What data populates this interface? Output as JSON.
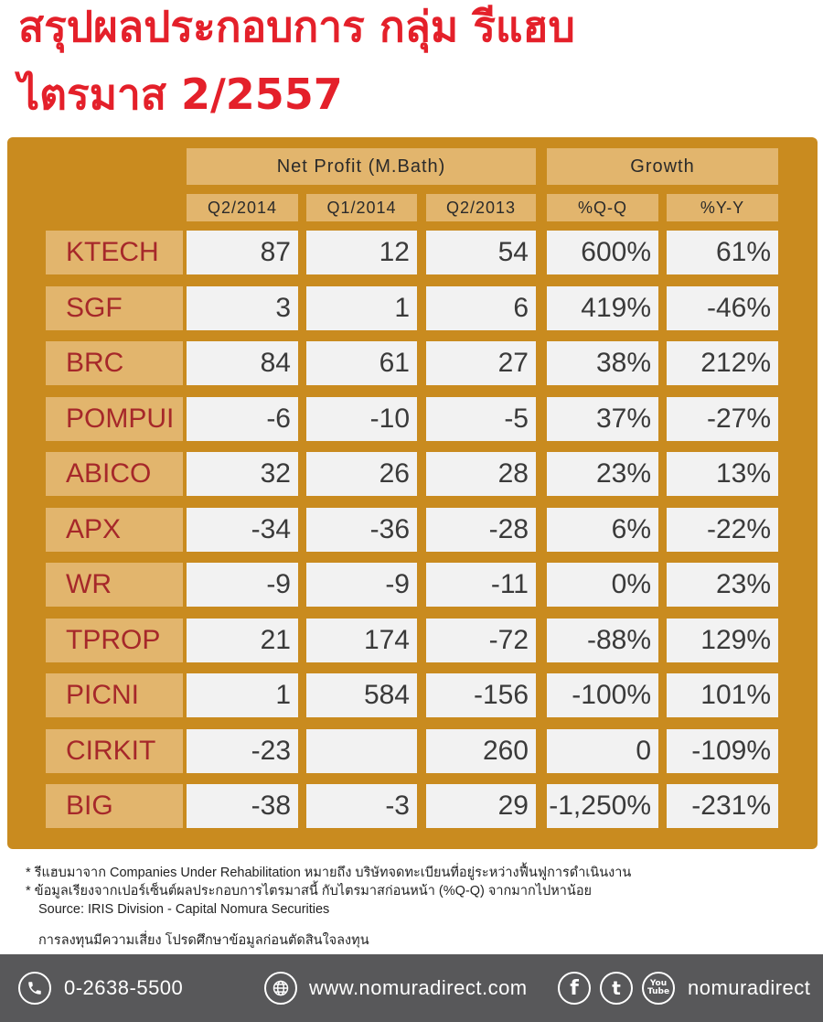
{
  "title": {
    "line1": "สรุปผลประกอบการ กลุ่ม รีแฮบ",
    "line2": "ไตรมาส 2/2557"
  },
  "table": {
    "group_headers": {
      "net_profit": "Net Profit (M.Bath)",
      "growth": "Growth"
    },
    "columns": [
      "Q2/2014",
      "Q1/2014",
      "Q2/2013",
      "%Q-Q",
      "%Y-Y"
    ],
    "rows": [
      {
        "name": "KTECH",
        "values": [
          "87",
          "12",
          "54",
          "600%",
          "61%"
        ]
      },
      {
        "name": "SGF",
        "values": [
          "3",
          "1",
          "6",
          "419%",
          "-46%"
        ]
      },
      {
        "name": "BRC",
        "values": [
          "84",
          "61",
          "27",
          "38%",
          "212%"
        ]
      },
      {
        "name": "POMPUI",
        "values": [
          "-6",
          "-10",
          "-5",
          "37%",
          "-27%"
        ]
      },
      {
        "name": "ABICO",
        "values": [
          "32",
          "26",
          "28",
          "23%",
          "13%"
        ]
      },
      {
        "name": "APX",
        "values": [
          "-34",
          "-36",
          "-28",
          "6%",
          "-22%"
        ]
      },
      {
        "name": "WR",
        "values": [
          "-9",
          "-9",
          "-11",
          "0%",
          "23%"
        ]
      },
      {
        "name": "TPROP",
        "values": [
          "21",
          "174",
          "-72",
          "-88%",
          "129%"
        ]
      },
      {
        "name": "PICNI",
        "values": [
          "1",
          "584",
          "-156",
          "-100%",
          "101%"
        ]
      },
      {
        "name": "CIRKIT",
        "values": [
          "-23",
          "",
          "260",
          "0",
          "-109%"
        ]
      },
      {
        "name": "BIG",
        "values": [
          "-38",
          "-3",
          "29",
          "-1,250%",
          "-231%"
        ]
      }
    ]
  },
  "notes": {
    "line1": "* รีแฮบมาจาก Companies Under Rehabilitation หมายถึง บริษัทจดทะเบียนที่อยู่ระหว่างฟื้นฟูการดำเนินงาน",
    "line2": "* ข้อมูลเรียงจากเปอร์เซ็นต์ผลประกอบการไตรมาสนี้ กับไตรมาสก่อนหน้า (%Q-Q) จากมากไปหาน้อย",
    "source": "Source: IRIS Division - Capital Nomura Securities",
    "risk": "การลงทุนมีความเสี่ยง โปรดศึกษาข้อมูลก่อนตัดสินใจลงทุน"
  },
  "footer": {
    "phone": "0-2638-5500",
    "website": "www.nomuradirect.com",
    "social": "nomuradirect",
    "icons": [
      "phone-icon",
      "globe-icon",
      "facebook-icon",
      "twitter-icon",
      "youtube-icon"
    ]
  },
  "colors": {
    "title_red": "#e4202a",
    "panel_gold": "#c98b1f",
    "header_tan": "#e2b56d",
    "name_red": "#a6282a",
    "cell_bg": "#f2f2f2",
    "footer_gray": "#58585a"
  }
}
